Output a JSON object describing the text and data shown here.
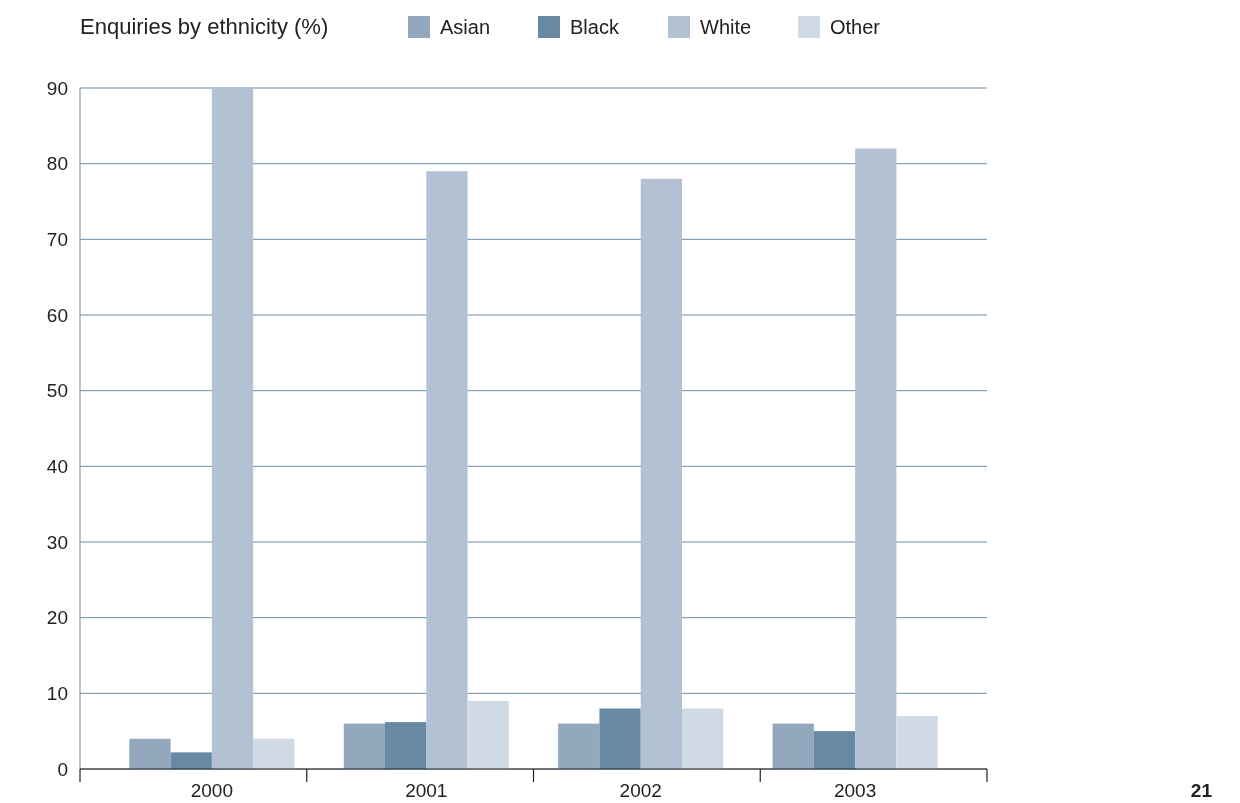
{
  "chart_data": {
    "type": "bar",
    "title": "Enquiries by ethnicity (%)",
    "categories": [
      "2000",
      "2001",
      "2002",
      "2003"
    ],
    "series": [
      {
        "name": "Asian",
        "color": "#94a8bd",
        "values": [
          4,
          6,
          6,
          6
        ]
      },
      {
        "name": "Black",
        "color": "#6889a3",
        "values": [
          2.2,
          6.2,
          8,
          5
        ]
      },
      {
        "name": "White",
        "color": "#b3c2d3",
        "values": [
          90,
          79,
          78,
          82
        ]
      },
      {
        "name": "Other",
        "color": "#d0dae4",
        "values": [
          4,
          9,
          8,
          7
        ]
      }
    ],
    "ylim": [
      0,
      90
    ],
    "yticks": [
      0,
      10,
      20,
      30,
      40,
      50,
      60,
      70,
      80,
      90
    ],
    "grid": "y",
    "legend": "top",
    "annotations": [
      "21"
    ]
  }
}
